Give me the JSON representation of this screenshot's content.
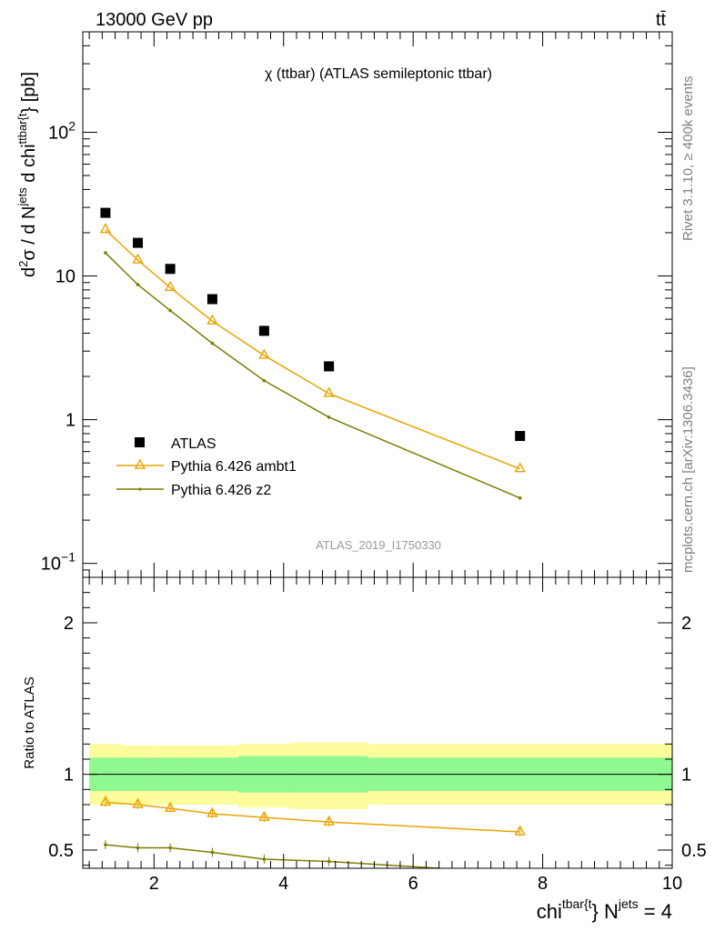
{
  "header": {
    "energy_label": "13000 GeV pp",
    "process_label": "tt̄"
  },
  "side": {
    "rivet_label": "Rivet 3.1.10, ≥ 400k events",
    "mcplots_label": "mcplots.cern.ch [arXiv:1306.3436]"
  },
  "analysis_tag": "ATLAS_2019_I1750330",
  "colors": {
    "data": "#000000",
    "ambt1": "#e8a400",
    "z2": "#7d7d00",
    "band_inner": "#90f890",
    "band_outer": "#fcfc9c"
  },
  "chart_data": [
    {
      "type": "scatter",
      "panel": "main",
      "title": "χ (ttbar) (ATLAS semileptonic ttbar)",
      "ylabel": {
        "d2": "d",
        "sup2": "2",
        "sigma": "σ / d N",
        "jets": "jets",
        "dchi": " d chi",
        "ttbar": "ttbar{t",
        "pb": "} [pb]"
      },
      "yscale": "log",
      "xlim": [
        0.9,
        10.0
      ],
      "ylim": [
        0.08,
        500
      ],
      "y_ticks": [
        {
          "value": 0.1,
          "base": "10",
          "exp": "−1"
        },
        {
          "value": 1,
          "label": "1"
        },
        {
          "value": 10,
          "label": "10"
        },
        {
          "value": 100,
          "base": "10",
          "exp": "2"
        }
      ],
      "x_ticks": [
        2,
        4,
        6,
        8,
        10
      ],
      "legend_position": "bottom-left",
      "series": [
        {
          "name": "ATLAS",
          "key": "data",
          "x": [
            1.25,
            1.75,
            2.25,
            2.9,
            3.7,
            4.7,
            7.65
          ],
          "y": [
            27.5,
            17.0,
            11.2,
            6.9,
            4.15,
            2.35,
            0.77
          ]
        },
        {
          "name": "Pythia 6.426 ambt1",
          "key": "ambt1",
          "x": [
            1.25,
            1.75,
            2.25,
            2.9,
            3.7,
            4.7,
            7.65
          ],
          "y": [
            21.0,
            12.9,
            8.3,
            4.85,
            2.8,
            1.52,
            0.455
          ]
        },
        {
          "name": "Pythia 6.426 z2",
          "key": "z2",
          "x": [
            1.25,
            1.75,
            2.25,
            2.9,
            3.7,
            4.7,
            7.65
          ],
          "y": [
            14.5,
            8.7,
            5.75,
            3.4,
            1.87,
            1.04,
            0.285
          ]
        }
      ]
    },
    {
      "type": "line",
      "panel": "ratio",
      "ylabel": "Ratio to ATLAS",
      "xlabel": {
        "chi": "chi",
        "ttbar": "tbar{t",
        "n": "} N",
        "jets": "jets",
        "eq": " = 4"
      },
      "xlim": [
        0.9,
        10.0
      ],
      "ylim": [
        0.38,
        2.3
      ],
      "y_ticks": [
        0.5,
        1,
        2
      ],
      "x_ticks": [
        2,
        4,
        6,
        8,
        10
      ],
      "bins": [
        {
          "lo": 1.0,
          "hi": 1.5,
          "inner": [
            0.89,
            1.11
          ],
          "outer": [
            0.8,
            1.2
          ]
        },
        {
          "lo": 1.5,
          "hi": 2.0,
          "inner": [
            0.89,
            1.11
          ],
          "outer": [
            0.8,
            1.19
          ]
        },
        {
          "lo": 2.0,
          "hi": 2.5,
          "inner": [
            0.89,
            1.11
          ],
          "outer": [
            0.8,
            1.19
          ]
        },
        {
          "lo": 2.5,
          "hi": 3.3,
          "inner": [
            0.89,
            1.11
          ],
          "outer": [
            0.8,
            1.19
          ]
        },
        {
          "lo": 3.3,
          "hi": 4.1,
          "inner": [
            0.88,
            1.12
          ],
          "outer": [
            0.78,
            1.2
          ]
        },
        {
          "lo": 4.1,
          "hi": 5.3,
          "inner": [
            0.88,
            1.12
          ],
          "outer": [
            0.77,
            1.21
          ]
        },
        {
          "lo": 5.3,
          "hi": 10.0,
          "inner": [
            0.89,
            1.11
          ],
          "outer": [
            0.8,
            1.2
          ]
        }
      ],
      "series": [
        {
          "name": "Pythia 6.426 ambt1",
          "key": "ambt1",
          "x": [
            1.25,
            1.75,
            2.25,
            2.9,
            3.7,
            4.7,
            7.65
          ],
          "y": [
            0.815,
            0.8,
            0.775,
            0.74,
            0.715,
            0.685,
            0.62
          ]
        },
        {
          "name": "Pythia 6.426 z2",
          "key": "z2",
          "x": [
            1.25,
            1.75,
            2.25,
            2.9,
            3.7,
            4.7,
            6.4
          ],
          "y": [
            0.535,
            0.515,
            0.515,
            0.485,
            0.44,
            0.425,
            0.38
          ]
        }
      ]
    }
  ]
}
